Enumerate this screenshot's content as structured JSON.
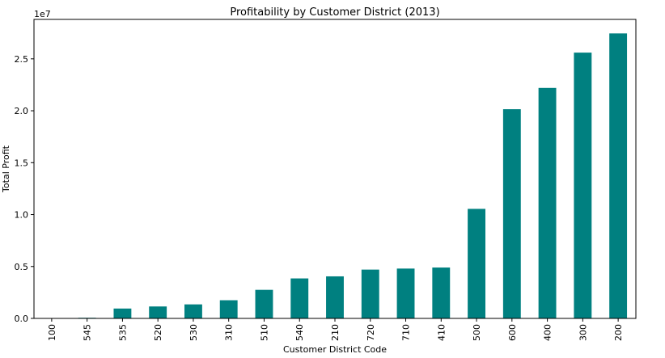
{
  "chart_data": {
    "type": "bar",
    "title": "Profitability by Customer District (2013)",
    "xlabel": "Customer District Code",
    "ylabel": "Total Profit",
    "y_offset_label": "1e7",
    "categories": [
      "100",
      "545",
      "535",
      "520",
      "530",
      "310",
      "510",
      "540",
      "210",
      "720",
      "710",
      "410",
      "500",
      "600",
      "400",
      "300",
      "200"
    ],
    "values": [
      30000,
      60000,
      950000,
      1150000,
      1350000,
      1750000,
      2750000,
      3850000,
      4050000,
      4700000,
      4800000,
      4900000,
      10550000,
      20150000,
      22200000,
      25600000,
      27450000
    ],
    "yticks": [
      0,
      5000000,
      10000000,
      15000000,
      20000000,
      25000000
    ],
    "ytick_labels": [
      "0.0",
      "0.5",
      "1.0",
      "1.5",
      "2.0",
      "2.5"
    ],
    "ylim": [
      0,
      28800000
    ],
    "bar_color": "#008080",
    "grid": false,
    "legend": "none"
  }
}
